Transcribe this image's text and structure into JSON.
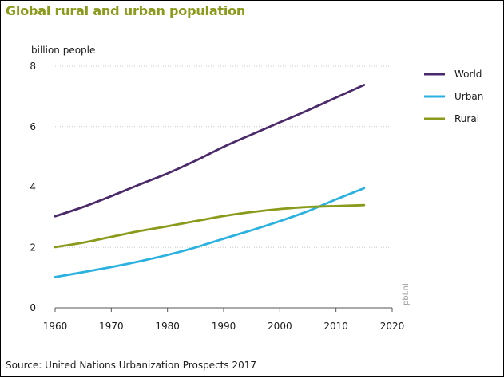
{
  "chart_data": {
    "type": "line",
    "title": "Global rural and urban population",
    "ylabel": "billion people",
    "xlabel": "",
    "source": "Source: United Nations Urbanization Prospects 2017",
    "credit": "pbl.nl",
    "xlim": [
      1960,
      2020
    ],
    "ylim": [
      0,
      8
    ],
    "xticks": [
      "1960",
      "1970",
      "1980",
      "1990",
      "2000",
      "2010",
      "2020"
    ],
    "yticks": [
      "0",
      "2",
      "4",
      "6",
      "8"
    ],
    "grid": true,
    "legend_position": "top-right",
    "x": [
      1960,
      1965,
      1970,
      1975,
      1980,
      1985,
      1990,
      1995,
      2000,
      2005,
      2010,
      2015
    ],
    "series": [
      {
        "name": "World",
        "color": "#4b2a6b",
        "values": [
          3.03,
          3.34,
          3.7,
          4.08,
          4.45,
          4.87,
          5.33,
          5.74,
          6.14,
          6.54,
          6.96,
          7.38
        ]
      },
      {
        "name": "Urban",
        "color": "#2bb1e0",
        "values": [
          1.02,
          1.18,
          1.35,
          1.54,
          1.75,
          2.0,
          2.29,
          2.57,
          2.87,
          3.2,
          3.59,
          3.96
        ]
      },
      {
        "name": "Rural",
        "color": "#8a9a1b",
        "values": [
          2.01,
          2.16,
          2.35,
          2.54,
          2.7,
          2.87,
          3.04,
          3.17,
          3.27,
          3.34,
          3.37,
          3.4
        ]
      }
    ]
  }
}
